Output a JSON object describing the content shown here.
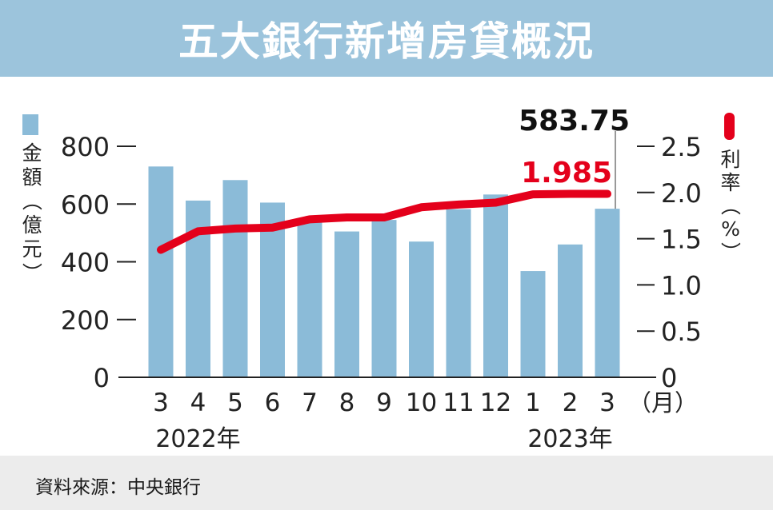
{
  "title": "五大銀行新增房貸概況",
  "source": "資料來源：中央銀行",
  "chart_data": {
    "type": "bar+line",
    "categories": [
      "3",
      "4",
      "5",
      "6",
      "7",
      "8",
      "9",
      "10",
      "11",
      "12",
      "1",
      "2",
      "3"
    ],
    "x_unit": "（月）",
    "year_labels": [
      {
        "text": "2022年",
        "under_category_index": 1
      },
      {
        "text": "2023年",
        "under_category_index": 11
      }
    ],
    "left_axis": {
      "label": [
        "金",
        "額",
        "（",
        "億",
        "元",
        "）"
      ],
      "ylim": [
        0,
        800
      ],
      "ticks": [
        0,
        200,
        400,
        600,
        800
      ]
    },
    "right_axis": {
      "label": [
        "利",
        "率",
        "（",
        "%",
        "）"
      ],
      "ylim": [
        0,
        2.5
      ],
      "ticks": [
        0,
        0.5,
        1.0,
        1.5,
        2.0,
        2.5
      ],
      "tick_labels": [
        "0",
        "0.5",
        "1.0",
        "1.5",
        "2.0",
        "2.5"
      ]
    },
    "series": [
      {
        "name": "金額",
        "type": "bar",
        "axis": "left",
        "color": "#8bbbd8",
        "values": [
          730,
          612,
          683,
          605,
          545,
          505,
          545,
          470,
          582,
          633,
          368,
          460,
          583.75
        ]
      },
      {
        "name": "利率",
        "type": "line",
        "axis": "right",
        "color": "#e4001b",
        "values": [
          1.38,
          1.58,
          1.61,
          1.62,
          1.71,
          1.73,
          1.73,
          1.84,
          1.87,
          1.89,
          1.98,
          1.985,
          1.985
        ]
      }
    ],
    "annotations": {
      "last_bar_value": "583.75",
      "last_line_value": "1.985"
    },
    "grid": false
  }
}
